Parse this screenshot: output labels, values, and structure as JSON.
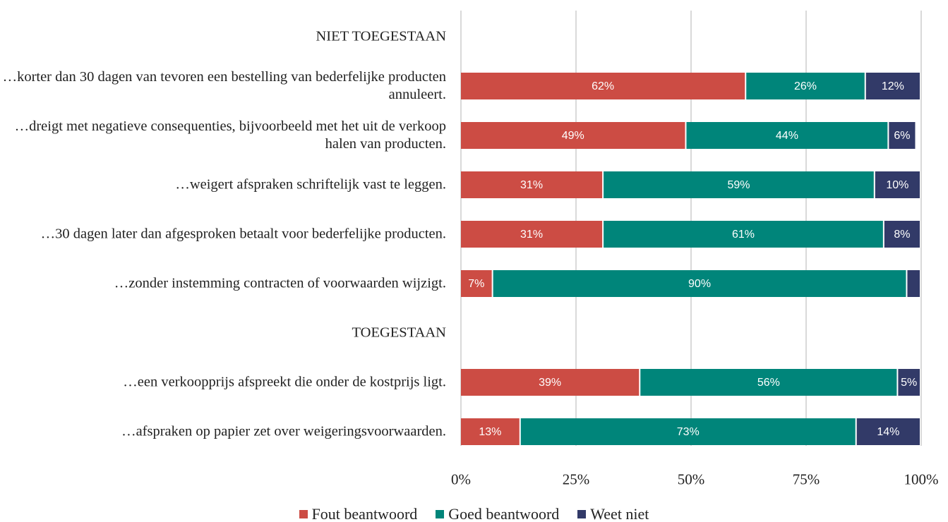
{
  "chart_data": {
    "type": "stacked_bar_horizontal",
    "categories": [
      "NIET TOEGESTAAN",
      "…korter dan 30 dagen van tevoren een bestelling van bederfelijke producten annuleert.",
      "…dreigt met negatieve consequenties, bijvoorbeeld met het uit de verkoop halen van producten.",
      "…weigert afspraken schriftelijk vast te leggen.",
      "…30 dagen later dan afgesproken betaalt voor bederfelijke producten.",
      "…zonder instemming contracten of voorwaarden wijzigt.",
      "TOEGESTAAN",
      "…een verkoopprijs afspreekt die onder de kostprijs ligt.",
      "…afspraken op papier zet over weigeringsvoorwaarden."
    ],
    "series": [
      {
        "name": "Fout beantwoord",
        "color": "#cc4c44",
        "values": [
          null,
          62,
          49,
          31,
          31,
          7,
          null,
          39,
          13
        ],
        "value_labels": [
          null,
          "62%",
          "49%",
          "31%",
          "31%",
          "7%",
          null,
          "39%",
          "13%"
        ]
      },
      {
        "name": "Goed beantwoord",
        "color": "#00857a",
        "values": [
          null,
          26,
          44,
          59,
          61,
          90,
          null,
          56,
          73
        ],
        "value_labels": [
          null,
          "26%",
          "44%",
          "59%",
          "61%",
          "90%",
          null,
          "56%",
          "73%"
        ]
      },
      {
        "name": "Weet niet",
        "color": "#323a68",
        "values": [
          null,
          12,
          6,
          10,
          8,
          3,
          null,
          5,
          14
        ],
        "value_labels": [
          null,
          "12%",
          "6%",
          "10%",
          "8%",
          null,
          null,
          "5%",
          "14%"
        ]
      }
    ],
    "xlim": [
      0,
      100
    ],
    "xticks": [
      {
        "value": 0,
        "label": "0%"
      },
      {
        "value": 25,
        "label": "25%"
      },
      {
        "value": 50,
        "label": "50%"
      },
      {
        "value": 75,
        "label": "75%"
      },
      {
        "value": 100,
        "label": "100%"
      }
    ],
    "grid": true,
    "legend": "bottom"
  }
}
